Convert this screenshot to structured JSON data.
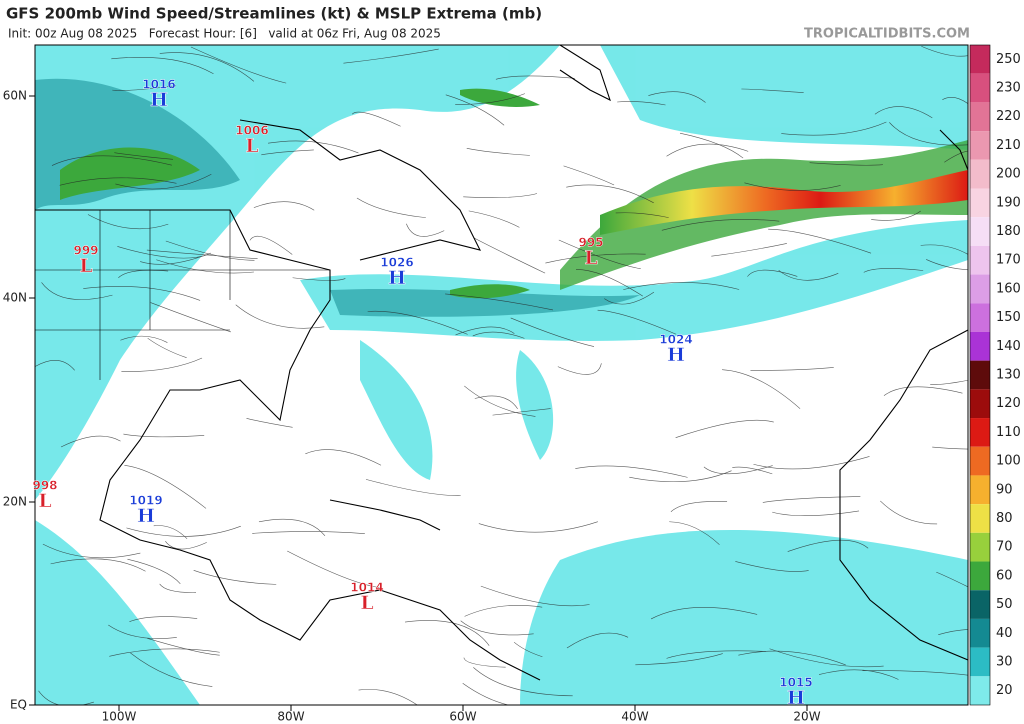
{
  "header": {
    "title": "GFS 200mb Wind Speed/Streamlines (kt) & MSLP Extrema (mb)",
    "subtitle": "Init: 00z Aug 08 2025   Forecast Hour: [6]   valid at 06z Fri, Aug 08 2025",
    "source": "TROPICALTIDBITS.COM"
  },
  "map": {
    "lat_labels": [
      "60N",
      "40N",
      "20N",
      "EQ"
    ],
    "lon_labels": [
      "100W",
      "80W",
      "60W",
      "40W",
      "20W"
    ],
    "pressure_centers": [
      {
        "type": "H",
        "value": 1016
      },
      {
        "type": "L",
        "value": 1006
      },
      {
        "type": "L",
        "value": 999
      },
      {
        "type": "H",
        "value": 1026
      },
      {
        "type": "L",
        "value": 995
      },
      {
        "type": "H",
        "value": 1024
      },
      {
        "type": "L",
        "value": 998
      },
      {
        "type": "H",
        "value": 1019
      },
      {
        "type": "L",
        "value": 1014
      },
      {
        "type": "H",
        "value": 1015
      }
    ]
  },
  "colorbar": {
    "ticks": [
      250,
      230,
      220,
      210,
      200,
      190,
      180,
      170,
      160,
      150,
      140,
      130,
      120,
      110,
      100,
      90,
      80,
      70,
      60,
      50,
      40,
      30,
      20
    ],
    "colors": [
      "#c42a5c",
      "#d8507e",
      "#e27496",
      "#eb98b0",
      "#f3bccb",
      "#f8d4e2",
      "#f6def6",
      "#eec4ee",
      "#dc9ee6",
      "#cc70de",
      "#aa33d6",
      "#5e0b0b",
      "#9c0c0c",
      "#dc1a14",
      "#ee6a22",
      "#f6b02e",
      "#eee046",
      "#98d03c",
      "#3ca83c",
      "#0a6466",
      "#148a92",
      "#2cbcc4",
      "#7eeaea"
    ]
  }
}
